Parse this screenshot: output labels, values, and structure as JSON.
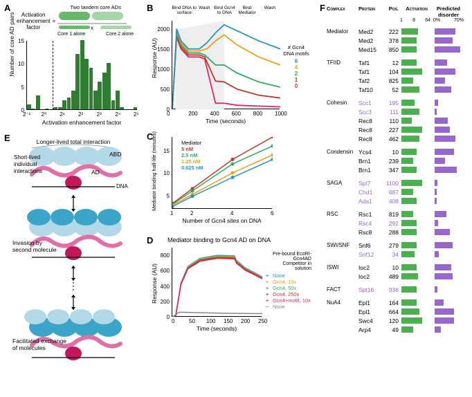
{
  "panelA": {
    "label": "A",
    "top_text": {
      "line1": "Activation",
      "line2": "enhancement",
      "line3": "factor",
      "eq": "=",
      "tandem": "Two tandem core ADs",
      "x": "x",
      "core1": "Core 1 alone",
      "core2": "Core 2 alone"
    },
    "xlabel": "Activation enhancement factor",
    "ylabel": "Number of core AD pairs",
    "xticks": [
      "2⁻¹",
      "2⁰",
      "2¹",
      "2²",
      "2³",
      "2⁴",
      "2⁵"
    ],
    "yticks": [
      "0",
      "5",
      "10",
      "15"
    ],
    "ylim": [
      0,
      15
    ],
    "bars": [
      1,
      0.2,
      3,
      0,
      0.2,
      0,
      0.5,
      0.5,
      2,
      2.5,
      4,
      12,
      15,
      11,
      9,
      4,
      6,
      8,
      10,
      2,
      4,
      0.5,
      0,
      0,
      0.5
    ],
    "bar_color": "#2e7d32",
    "dash_x": 0.23
  },
  "panelB": {
    "label": "B",
    "xlabel": "Time (seconds)",
    "ylabel": "Response (AU)",
    "xticks": [
      "0",
      "200",
      "400",
      "600",
      "800",
      "1000"
    ],
    "yticks": [
      "0",
      "500",
      "1000",
      "1500",
      "2000"
    ],
    "phases": [
      "Bind DNA to surface",
      "Wash",
      "Bind Gcn4 to DNA",
      "Bind Mediator",
      "Wash"
    ],
    "legend_title": "# Gcn4 DNA motifs",
    "legend": [
      {
        "label": "6",
        "color": "#2196c4"
      },
      {
        "label": "4",
        "color": "#f39c12"
      },
      {
        "label": "2",
        "color": "#27ae60"
      },
      {
        "label": "1",
        "color": "#c0392b"
      },
      {
        "label": "0",
        "color": "#e91e63"
      }
    ],
    "shade_color": "#eeeeee",
    "curves": {
      "6": [
        [
          0,
          0
        ],
        [
          40,
          2000
        ],
        [
          80,
          1700
        ],
        [
          150,
          1500
        ],
        [
          250,
          1500
        ],
        [
          320,
          1650
        ],
        [
          400,
          1900
        ],
        [
          480,
          2100
        ],
        [
          600,
          1950
        ],
        [
          800,
          1700
        ],
        [
          1000,
          1500
        ]
      ],
      "4": [
        [
          0,
          0
        ],
        [
          40,
          1950
        ],
        [
          80,
          1650
        ],
        [
          150,
          1450
        ],
        [
          250,
          1450
        ],
        [
          320,
          1500
        ],
        [
          400,
          1700
        ],
        [
          480,
          1850
        ],
        [
          600,
          1600
        ],
        [
          800,
          1300
        ],
        [
          1000,
          1100
        ]
      ],
      "2": [
        [
          0,
          0
        ],
        [
          40,
          1900
        ],
        [
          80,
          1600
        ],
        [
          150,
          1400
        ],
        [
          250,
          1400
        ],
        [
          300,
          1350
        ],
        [
          400,
          1100
        ],
        [
          480,
          1100
        ],
        [
          600,
          900
        ],
        [
          800,
          680
        ],
        [
          1000,
          550
        ]
      ],
      "1": [
        [
          0,
          0
        ],
        [
          40,
          1850
        ],
        [
          80,
          1550
        ],
        [
          150,
          1350
        ],
        [
          250,
          1350
        ],
        [
          300,
          1300
        ],
        [
          400,
          700
        ],
        [
          480,
          680
        ],
        [
          600,
          500
        ],
        [
          800,
          350
        ],
        [
          1000,
          280
        ]
      ],
      "0": [
        [
          0,
          0
        ],
        [
          40,
          1800
        ],
        [
          80,
          1500
        ],
        [
          150,
          1300
        ],
        [
          250,
          1300
        ],
        [
          300,
          1250
        ],
        [
          400,
          150
        ],
        [
          480,
          150
        ],
        [
          600,
          100
        ],
        [
          800,
          80
        ],
        [
          1000,
          60
        ]
      ]
    }
  },
  "panelC": {
    "label": "C",
    "xlabel": "Number of Gcn4 sites on DNA",
    "ylabel": "Mediator binding half-life (minutes)",
    "xticks": [
      "1",
      "2",
      "4",
      "6"
    ],
    "yticks": [
      "5",
      "10",
      "15"
    ],
    "ylim": [
      2,
      18
    ],
    "legend_title": "Mediator",
    "legend": [
      {
        "label": "5 nM",
        "color": "#c0392b"
      },
      {
        "label": "2.5 nM",
        "color": "#27ae60"
      },
      {
        "label": "1.25 nM",
        "color": "#f39c12"
      },
      {
        "label": "0.625 nM",
        "color": "#2196c4"
      }
    ],
    "series": {
      "5": [
        [
          1,
          3.2
        ],
        [
          2,
          6.5
        ],
        [
          4,
          13
        ],
        [
          6,
          18
        ]
      ],
      "2.5": [
        [
          1,
          3
        ],
        [
          2,
          6
        ],
        [
          4,
          12
        ],
        [
          6,
          16
        ]
      ],
      "1.25": [
        [
          1,
          2.8
        ],
        [
          2,
          5.2
        ],
        [
          4,
          10
        ],
        [
          6,
          14
        ]
      ],
      "0.625": [
        [
          1,
          2.5
        ],
        [
          2,
          4.8
        ],
        [
          4,
          9
        ],
        [
          6,
          13
        ]
      ]
    }
  },
  "panelD": {
    "label": "D",
    "title": "Mediator binding to Gcn4 AD on DNA",
    "xlabel": "Time (seconds)",
    "ylabel": "Response (AU)",
    "xticks": [
      "0",
      "50",
      "100",
      "150",
      "200",
      "250"
    ],
    "yticks": [
      "0",
      "200",
      "400",
      "600",
      "800"
    ],
    "legend_head1": "Pre-bound EcoRI-Gcn4AD",
    "legend_head2": "Competitor in solution",
    "legend": [
      {
        "mark": "+",
        "label": "None",
        "color": "#2196c4"
      },
      {
        "mark": "+",
        "label": "Gcn4, 10x",
        "color": "#f39c12"
      },
      {
        "mark": "+",
        "label": "Gcn4, 50x",
        "color": "#27ae60"
      },
      {
        "mark": "+",
        "label": "Gcn4, 250x",
        "color": "#c0392b"
      },
      {
        "mark": "+",
        "label": "Gcn4+motif, 10x",
        "color": "#e91e63"
      },
      {
        "mark": "−",
        "label": "None",
        "color": "#888888"
      }
    ]
  },
  "panelE": {
    "label": "E",
    "text1": "Longer-lived total interaction",
    "text2": "Short-lived individual interactions",
    "abd": "ABD",
    "ad": "AD",
    "dna": "DNA",
    "text3": "Invasion by second molecule",
    "text4": "Facilitated exchange of molecules",
    "dots": "⋮",
    "color_light": "#b3d9e8",
    "color_dark": "#3ba5c9",
    "color_pink": "#e06fa8",
    "color_magenta": "#c2185b"
  },
  "panelF": {
    "label": "F",
    "head_complex": "Complex",
    "head_protein": "Protein",
    "head_pos": "Pos.",
    "head_act": "Activation",
    "head_dis": "Predicted disorder",
    "act_ticks": [
      "1",
      "8",
      "64"
    ],
    "dis_ticks": [
      "0%",
      "70%"
    ],
    "act_color": "#4caf50",
    "dis_color": "#9966cc",
    "purple_text": "#9966cc",
    "groups": [
      {
        "name": "Mediator",
        "rows": [
          {
            "p": "Med2",
            "pos": "222",
            "act": 0.55,
            "dis": 0.7,
            "hl": false
          },
          {
            "p": "Med2",
            "pos": "378",
            "act": 0.5,
            "dis": 0.6,
            "hl": false
          },
          {
            "p": "Med15",
            "pos": "850",
            "act": 0.5,
            "dis": 0.85,
            "hl": false
          }
        ]
      },
      {
        "name": "TFIID",
        "rows": [
          {
            "p": "Taf1",
            "pos": "12",
            "act": 0.5,
            "dis": 0.42,
            "hl": false
          },
          {
            "p": "Taf1",
            "pos": "104",
            "act": 0.7,
            "dis": 0.7,
            "hl": false
          },
          {
            "p": "Taf2",
            "pos": "825",
            "act": 0.4,
            "dis": 0.35,
            "hl": false
          },
          {
            "p": "Taf10",
            "pos": "52",
            "act": 0.6,
            "dis": 0.55,
            "hl": false
          }
        ]
      },
      {
        "name": "Cohesin",
        "rows": [
          {
            "p": "Scc1",
            "pos": "195",
            "act": 0.45,
            "dis": 0.12,
            "hl": true
          },
          {
            "p": "Scc3",
            "pos": "111",
            "act": 0.6,
            "dis": 0.08,
            "hl": true
          },
          {
            "p": "Rec8",
            "pos": "110",
            "act": 0.35,
            "dis": 0.45,
            "hl": false
          },
          {
            "p": "Rec8",
            "pos": "227",
            "act": 0.7,
            "dis": 0.5,
            "hl": false
          },
          {
            "p": "Rec8",
            "pos": "462",
            "act": 0.6,
            "dis": 0.7,
            "hl": false
          }
        ]
      },
      {
        "name": "Condensin",
        "rows": [
          {
            "p": "Ycs4",
            "pos": "10",
            "act": 0.5,
            "dis": 0.65,
            "hl": false
          },
          {
            "p": "Brn1",
            "pos": "239",
            "act": 0.4,
            "dis": 0.35,
            "hl": false
          },
          {
            "p": "Brn1",
            "pos": "347",
            "act": 0.5,
            "dis": 0.75,
            "hl": false
          }
        ]
      },
      {
        "name": "SAGA",
        "rows": [
          {
            "p": "Spt7",
            "pos": "1100",
            "act": 0.7,
            "dis": 0.1,
            "hl": true
          },
          {
            "p": "Chd1",
            "pos": "887",
            "act": 0.4,
            "dis": 0.08,
            "hl": true
          },
          {
            "p": "Ada1",
            "pos": "408",
            "act": 0.5,
            "dis": 0.08,
            "hl": true
          }
        ]
      },
      {
        "name": "RSC",
        "rows": [
          {
            "p": "Rsc1",
            "pos": "819",
            "act": 0.4,
            "dis": 0.4,
            "hl": false
          },
          {
            "p": "Rsc4",
            "pos": "292",
            "act": 0.5,
            "dis": 0.12,
            "hl": true
          },
          {
            "p": "Rsc8",
            "pos": "288",
            "act": 0.5,
            "dis": 0.5,
            "hl": false
          }
        ]
      },
      {
        "name": "SWI/SNF",
        "rows": [
          {
            "p": "Snf6",
            "pos": "279",
            "act": 0.5,
            "dis": 0.6,
            "hl": false
          },
          {
            "p": "Snf12",
            "pos": "34",
            "act": 0.45,
            "dis": 0.14,
            "hl": true
          }
        ]
      },
      {
        "name": "ISWI",
        "rows": [
          {
            "p": "Ioc2",
            "pos": "10",
            "act": 0.5,
            "dis": 0.55,
            "hl": false
          },
          {
            "p": "Ioc2",
            "pos": "489",
            "act": 0.55,
            "dis": 0.6,
            "hl": false
          }
        ]
      },
      {
        "name": "FACT",
        "rows": [
          {
            "p": "Spt16",
            "pos": "936",
            "act": 0.5,
            "dis": 0.1,
            "hl": true
          }
        ]
      },
      {
        "name": "NuA4",
        "rows": [
          {
            "p": "Epl1",
            "pos": "164",
            "act": 0.5,
            "dis": 0.3,
            "hl": false
          },
          {
            "p": "Epl1",
            "pos": "664",
            "act": 0.6,
            "dis": 0.65,
            "hl": false
          },
          {
            "p": "Swc4",
            "pos": "120",
            "act": 0.7,
            "dis": 0.65,
            "hl": false
          },
          {
            "p": "Arp4",
            "pos": "49",
            "act": 0.4,
            "dis": 0.2,
            "hl": false
          }
        ]
      }
    ]
  }
}
